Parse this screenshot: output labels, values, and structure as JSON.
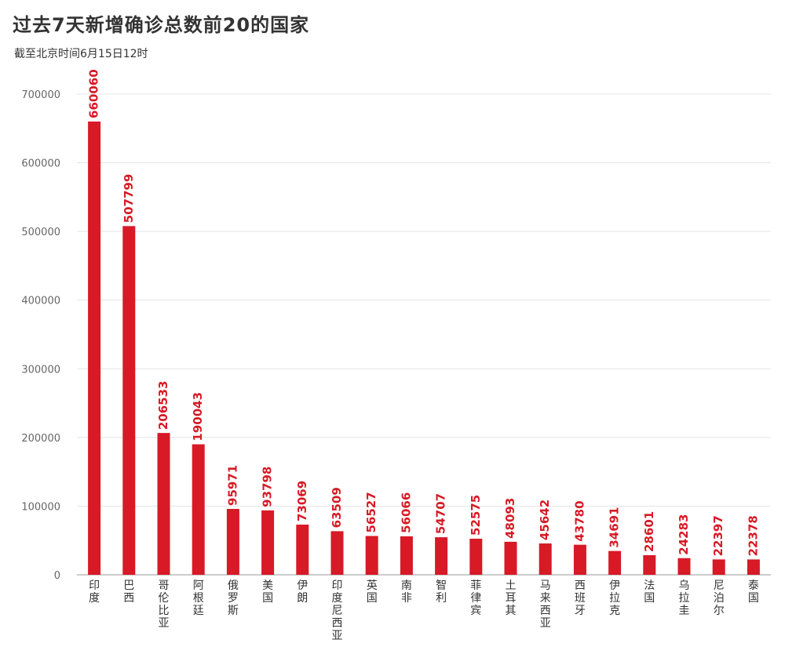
{
  "title": "过去7天新增确诊总数前20的国家",
  "subtitle": "截至北京时间6月15日12时",
  "colors": {
    "bar": "#d71a26",
    "grid": "#e3e3e3",
    "text": "#333333"
  },
  "chart_data": {
    "type": "bar",
    "title": "过去7天新增确诊总数前20的国家",
    "subtitle": "截至北京时间6月15日12时",
    "xlabel": "",
    "ylabel": "",
    "ylim": [
      0,
      700000
    ],
    "yticks": [
      0,
      100000,
      200000,
      300000,
      400000,
      500000,
      600000,
      700000
    ],
    "grid": true,
    "categories": [
      "印度",
      "巴西",
      "哥伦比亚",
      "阿根廷",
      "俄罗斯",
      "美国",
      "伊朗",
      "印度尼西亚",
      "英国",
      "南非",
      "智利",
      "菲律宾",
      "土耳其",
      "马来西亚",
      "西班牙",
      "伊拉克",
      "法国",
      "乌拉圭",
      "尼泊尔",
      "泰国"
    ],
    "values": [
      660060,
      507799,
      206533,
      190043,
      95971,
      93798,
      73069,
      63509,
      56527,
      56066,
      54707,
      52575,
      48093,
      45642,
      43780,
      34691,
      28601,
      24283,
      22397,
      22378
    ]
  }
}
